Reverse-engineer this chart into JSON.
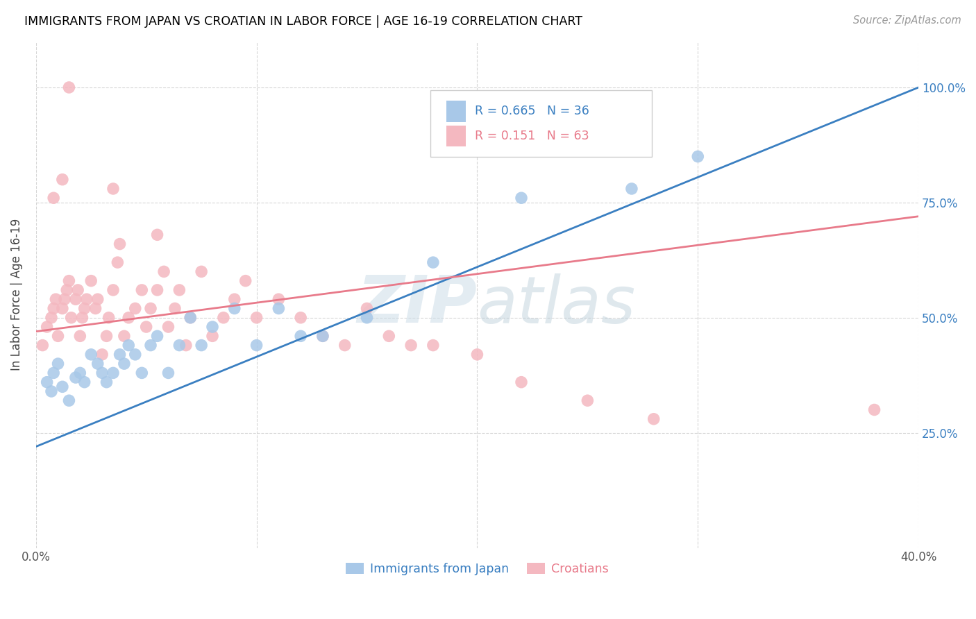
{
  "title": "IMMIGRANTS FROM JAPAN VS CROATIAN IN LABOR FORCE | AGE 16-19 CORRELATION CHART",
  "source": "Source: ZipAtlas.com",
  "ylabel": "In Labor Force | Age 16-19",
  "x_min": 0.0,
  "x_max": 0.4,
  "y_min": 0.0,
  "y_max": 1.1,
  "watermark": "ZIPatlas",
  "legend_japan_label": "Immigrants from Japan",
  "legend_croatia_label": "Croatians",
  "R_japan": 0.665,
  "N_japan": 36,
  "R_croatia": 0.151,
  "N_croatia": 63,
  "japan_color": "#a8c8e8",
  "croatia_color": "#f4b8c0",
  "japan_line_color": "#3a7fc1",
  "croatia_line_color": "#e87a8a",
  "japan_scatter_x": [
    0.005,
    0.007,
    0.008,
    0.01,
    0.012,
    0.015,
    0.018,
    0.02,
    0.022,
    0.025,
    0.028,
    0.03,
    0.032,
    0.035,
    0.038,
    0.04,
    0.042,
    0.045,
    0.048,
    0.052,
    0.055,
    0.06,
    0.065,
    0.07,
    0.075,
    0.08,
    0.09,
    0.1,
    0.11,
    0.12,
    0.13,
    0.15,
    0.18,
    0.22,
    0.27,
    0.3
  ],
  "japan_scatter_y": [
    0.36,
    0.34,
    0.38,
    0.4,
    0.35,
    0.32,
    0.37,
    0.38,
    0.36,
    0.42,
    0.4,
    0.38,
    0.36,
    0.38,
    0.42,
    0.4,
    0.44,
    0.42,
    0.38,
    0.44,
    0.46,
    0.38,
    0.44,
    0.5,
    0.44,
    0.48,
    0.52,
    0.44,
    0.52,
    0.46,
    0.46,
    0.5,
    0.62,
    0.76,
    0.78,
    0.85
  ],
  "croatia_scatter_x": [
    0.003,
    0.005,
    0.007,
    0.008,
    0.009,
    0.01,
    0.012,
    0.013,
    0.014,
    0.015,
    0.016,
    0.018,
    0.019,
    0.02,
    0.021,
    0.022,
    0.023,
    0.025,
    0.027,
    0.028,
    0.03,
    0.032,
    0.033,
    0.035,
    0.037,
    0.038,
    0.04,
    0.042,
    0.045,
    0.048,
    0.05,
    0.052,
    0.055,
    0.058,
    0.06,
    0.063,
    0.065,
    0.068,
    0.07,
    0.075,
    0.08,
    0.085,
    0.09,
    0.095,
    0.1,
    0.11,
    0.12,
    0.13,
    0.14,
    0.15,
    0.16,
    0.17,
    0.18,
    0.2,
    0.22,
    0.25,
    0.28,
    0.008,
    0.012,
    0.015,
    0.035,
    0.055,
    0.38
  ],
  "croatia_scatter_y": [
    0.44,
    0.48,
    0.5,
    0.52,
    0.54,
    0.46,
    0.52,
    0.54,
    0.56,
    0.58,
    0.5,
    0.54,
    0.56,
    0.46,
    0.5,
    0.52,
    0.54,
    0.58,
    0.52,
    0.54,
    0.42,
    0.46,
    0.5,
    0.56,
    0.62,
    0.66,
    0.46,
    0.5,
    0.52,
    0.56,
    0.48,
    0.52,
    0.56,
    0.6,
    0.48,
    0.52,
    0.56,
    0.44,
    0.5,
    0.6,
    0.46,
    0.5,
    0.54,
    0.58,
    0.5,
    0.54,
    0.5,
    0.46,
    0.44,
    0.52,
    0.46,
    0.44,
    0.44,
    0.42,
    0.36,
    0.32,
    0.28,
    0.76,
    0.8,
    1.0,
    0.78,
    0.68,
    0.3
  ],
  "japan_line_x0": 0.0,
  "japan_line_y0": 0.22,
  "japan_line_x1": 0.4,
  "japan_line_y1": 1.0,
  "croatia_line_x0": 0.0,
  "croatia_line_y0": 0.47,
  "croatia_line_x1": 0.4,
  "croatia_line_y1": 0.72
}
